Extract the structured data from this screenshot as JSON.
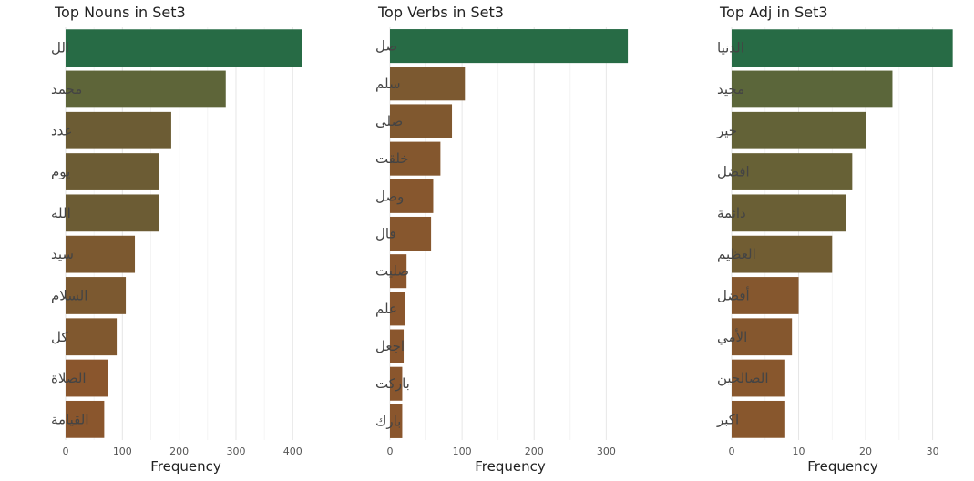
{
  "chart_data": [
    {
      "type": "bar",
      "orientation": "horizontal",
      "title": "Top Nouns in  Set3",
      "xlabel": "Frequency",
      "ylabel": "",
      "categories": [
        "الل",
        "محمد",
        "عدد",
        "يوم",
        "الله",
        "سيد",
        "السلام",
        "كل",
        "الصلاة",
        "القيامة"
      ],
      "values": [
        417,
        282,
        186,
        164,
        164,
        122,
        106,
        90,
        74,
        68
      ],
      "xlim": [
        0,
        430
      ],
      "xticks": [
        0,
        100,
        200,
        300,
        400
      ],
      "colors": [
        "#276b45",
        "#5e6539",
        "#6c5c34",
        "#6c5c34",
        "#6c5c34",
        "#7c5930",
        "#7c5930",
        "#80582f",
        "#8a562d",
        "#8a562d"
      ],
      "grid": true
    },
    {
      "type": "bar",
      "orientation": "horizontal",
      "title": "Top Verbs in  Set3",
      "xlabel": "Frequency",
      "ylabel": "",
      "categories": [
        "صل",
        "سلم",
        "صلى",
        "خلقت",
        "وصل",
        "قال",
        "صليت",
        "علم",
        "اجعل",
        "باركت",
        "بارك"
      ],
      "values": [
        330,
        104,
        86,
        70,
        60,
        57,
        23,
        21,
        19,
        17,
        17
      ],
      "xlim": [
        0,
        340
      ],
      "xticks": [
        0,
        100,
        200,
        300
      ],
      "colors": [
        "#276b45",
        "#7c5930",
        "#80582f",
        "#84572e",
        "#87572e",
        "#87572e",
        "#8a562d",
        "#8a562d",
        "#8a562d",
        "#8a562d",
        "#8a562d"
      ],
      "grid": true
    },
    {
      "type": "bar",
      "orientation": "horizontal",
      "title": "Top Adj in  Set3",
      "xlabel": "Frequency",
      "ylabel": "",
      "categories": [
        "الدنيا",
        "مجيد",
        "خير",
        "افضل",
        "دائمة",
        "العظيم",
        "أفضل",
        "الأمي",
        "الصالحين",
        "اكبر"
      ],
      "values": [
        33,
        24,
        20,
        18,
        17,
        15,
        10,
        9,
        8,
        8
      ],
      "xlim": [
        0,
        34
      ],
      "xticks": [
        0,
        10,
        20,
        30
      ],
      "colors": [
        "#276b45",
        "#5b663a",
        "#636237",
        "#676136",
        "#6a5f35",
        "#715d33",
        "#85572e",
        "#85572e",
        "#88572d",
        "#88572d"
      ],
      "grid": true
    }
  ]
}
